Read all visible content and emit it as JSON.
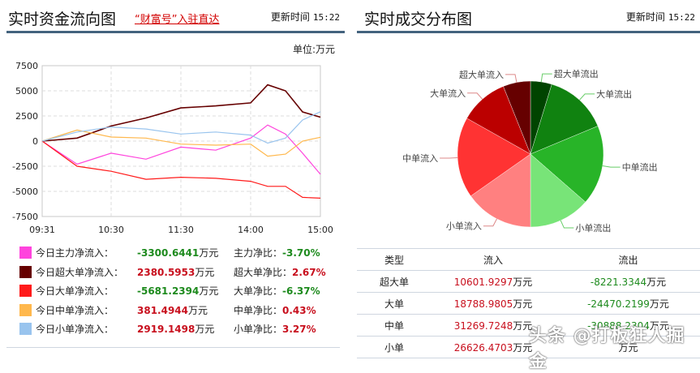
{
  "left_panel": {
    "title": "实时资金流向图",
    "promo_link": "“财富号”入驻直达",
    "update_label": "更新时间",
    "update_time": "15:22",
    "unit_label": "单位:万元"
  },
  "right_panel": {
    "title": "实时成交分布图",
    "update_label": "更新时间",
    "update_time": "15:22"
  },
  "legend": [
    {
      "name": "今日主力净流入：",
      "value": "-3300.6441",
      "unit": "万元",
      "ratio_label": "主力净比：",
      "ratio": "-3.70%",
      "color": "#ff44dd",
      "dir": "dn"
    },
    {
      "name": "今日超大单净流入：",
      "value": "2380.5953",
      "unit": "万元",
      "ratio_label": "超大单净比：",
      "ratio": "2.67%",
      "color": "#660000",
      "dir": "up"
    },
    {
      "name": "今日大单净流入：",
      "value": "-5681.2394",
      "unit": "万元",
      "ratio_label": "大单净比：",
      "ratio": "-6.37%",
      "color": "#ff1a1a",
      "dir": "dn"
    },
    {
      "name": "今日中单净流入：",
      "value": "381.4944",
      "unit": "万元",
      "ratio_label": "中单净比：",
      "ratio": "0.43%",
      "color": "#ffb84d",
      "dir": "up"
    },
    {
      "name": "今日小单净流入：",
      "value": "2919.1498",
      "unit": "万元",
      "ratio_label": "小单净比：",
      "ratio": "3.27%",
      "color": "#99c4ee",
      "dir": "up"
    }
  ],
  "table": {
    "headers": [
      "类型",
      "流入",
      "流出"
    ],
    "unit": "万元",
    "rows": [
      {
        "type": "超大单",
        "inflow": "10601.9297",
        "outflow": "-8221.3344"
      },
      {
        "type": "大单",
        "inflow": "18788.9805",
        "outflow": "-24470.2199"
      },
      {
        "type": "中单",
        "inflow": "31269.7248",
        "outflow": "-30888.2304"
      },
      {
        "type": "小单",
        "inflow": "26626.4703",
        "outflow": ""
      }
    ]
  },
  "watermark": "头条 @打板狂人掘金",
  "chart_data": [
    {
      "type": "line",
      "title": "实时资金流向图",
      "ylabel": "万元",
      "xlabel": "",
      "ylim": [
        -7500,
        7500
      ],
      "yticks": [
        "7500",
        "5000",
        "2500",
        "0",
        "-2500",
        "-5000",
        "-7500"
      ],
      "xticks": [
        "09:31",
        "10:30",
        "11:30",
        "14:00",
        "15:00"
      ],
      "grid": true,
      "x": [
        "09:31",
        "10:00",
        "10:30",
        "11:00",
        "11:30",
        "13:30",
        "14:00",
        "14:15",
        "14:30",
        "14:45",
        "15:00"
      ],
      "series": [
        {
          "name": "主力净流入",
          "color": "#ff44dd",
          "values": [
            0,
            -2300,
            -1200,
            -1800,
            -600,
            -900,
            300,
            1600,
            700,
            -1200,
            -3300
          ]
        },
        {
          "name": "超大单净流入",
          "color": "#660000",
          "values": [
            0,
            300,
            1500,
            2300,
            3300,
            3500,
            3800,
            5600,
            5000,
            2900,
            2380
          ]
        },
        {
          "name": "大单净流入",
          "color": "#ff1a1a",
          "values": [
            0,
            -2500,
            -3000,
            -3800,
            -3600,
            -3700,
            -4000,
            -4500,
            -4500,
            -5600,
            -5680
          ]
        },
        {
          "name": "中单净流入",
          "color": "#ffb84d",
          "values": [
            0,
            1100,
            400,
            300,
            -300,
            -400,
            -300,
            -1500,
            -1300,
            0,
            380
          ]
        },
        {
          "name": "小单净流入",
          "color": "#99c4ee",
          "values": [
            0,
            900,
            1400,
            1200,
            700,
            900,
            600,
            -200,
            300,
            2100,
            2920
          ]
        }
      ]
    },
    {
      "type": "pie",
      "title": "实时成交分布图",
      "labels": [
        "超大单流出",
        "大单流出",
        "中单流出",
        "小单流出",
        "小单流入",
        "中单流入",
        "大单流入",
        "超大单流入"
      ],
      "values": [
        8221.3344,
        24470.2199,
        30888.2304,
        23707.3205,
        26626.4703,
        31269.7248,
        18788.9805,
        10601.9297
      ],
      "colors": [
        "#004400",
        "#108210",
        "#28b428",
        "#78e478",
        "#ff8080",
        "#ff3333",
        "#bb0000",
        "#660000"
      ]
    }
  ]
}
